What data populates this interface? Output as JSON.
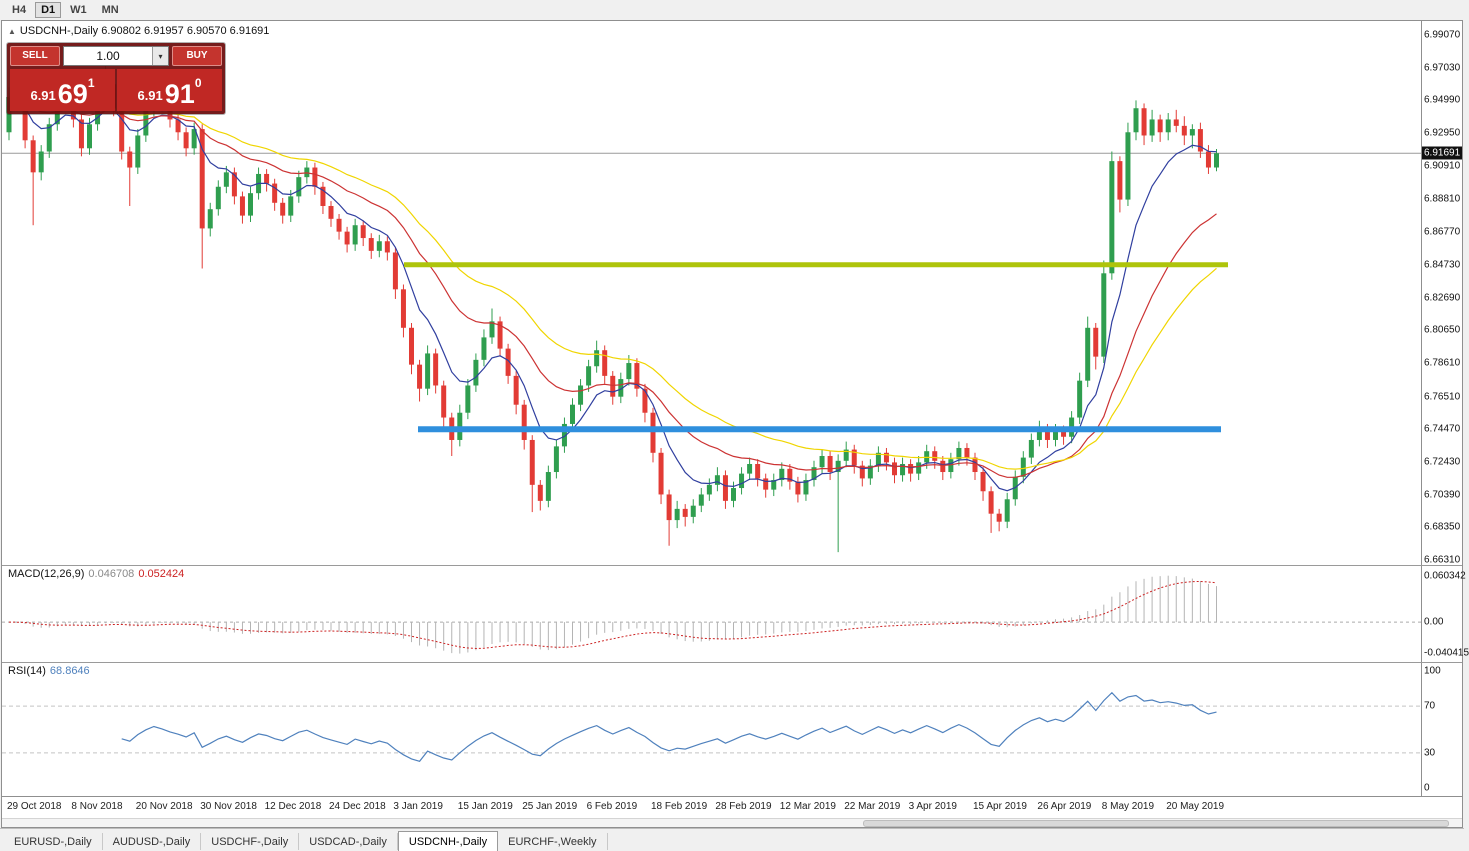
{
  "window": {
    "periods": [
      "H4",
      "D1",
      "W1",
      "MN"
    ],
    "active_period": "D1"
  },
  "chart": {
    "title_line": "USDCNH-,Daily 6.90802 6.91957 6.90570 6.91691"
  },
  "trade_panel": {
    "sell_label": "SELL",
    "buy_label": "BUY",
    "volume": "1.00",
    "sell_price": {
      "prefix": "6.91",
      "big": "69",
      "sup": "1"
    },
    "buy_price": {
      "prefix": "6.91",
      "big": "91",
      "sup": "0"
    }
  },
  "chart_data": {
    "type": "candlestick",
    "symbol": "USDCNH-",
    "timeframe": "Daily",
    "last_bar": {
      "open": "6.90802",
      "high": "6.91957",
      "low": "6.90570",
      "close": "6.91691"
    },
    "current_price": "6.91691",
    "y_range": [
      6.6631,
      6.9907
    ],
    "price_axis_ticks": [
      "6.99070",
      "6.97030",
      "6.94990",
      "6.92950",
      "6.90910",
      "6.88810",
      "6.86770",
      "6.84730",
      "6.82690",
      "6.80650",
      "6.78610",
      "6.76510",
      "6.74470",
      "6.72430",
      "6.70390",
      "6.68350",
      "6.66310"
    ],
    "date_labels": [
      "29 Oct 2018",
      "8 Nov 2018",
      "20 Nov 2018",
      "30 Nov 2018",
      "12 Dec 2018",
      "24 Dec 2018",
      "3 Jan 2019",
      "15 Jan 2019",
      "25 Jan 2019",
      "6 Feb 2019",
      "18 Feb 2019",
      "28 Feb 2019",
      "12 Mar 2019",
      "22 Mar 2019",
      "3 Apr 2019",
      "15 Apr 2019",
      "26 Apr 2019",
      "8 May 2019",
      "20 May 2019"
    ],
    "label_every_n_candles": 8,
    "candles": [
      [
        6.93,
        6.958,
        6.925,
        6.952
      ],
      [
        6.952,
        6.957,
        6.943,
        6.948
      ],
      [
        6.948,
        6.951,
        6.92,
        6.925
      ],
      [
        6.925,
        6.928,
        6.872,
        6.905
      ],
      [
        6.905,
        6.922,
        6.9,
        6.918
      ],
      [
        6.918,
        6.939,
        6.914,
        6.935
      ],
      [
        6.935,
        6.954,
        6.931,
        6.95
      ],
      [
        6.95,
        6.96,
        6.946,
        6.955
      ],
      [
        6.955,
        6.958,
        6.933,
        6.938
      ],
      [
        6.938,
        6.941,
        6.915,
        6.92
      ],
      [
        6.92,
        6.939,
        6.916,
        6.935
      ],
      [
        6.935,
        6.956,
        6.931,
        6.952
      ],
      [
        6.952,
        6.978,
        6.948,
        6.96
      ],
      [
        6.96,
        6.964,
        6.94,
        6.945
      ],
      [
        6.945,
        6.948,
        6.913,
        6.918
      ],
      [
        6.918,
        6.921,
        6.884,
        6.908
      ],
      [
        6.908,
        6.932,
        6.904,
        6.928
      ],
      [
        6.928,
        6.948,
        6.924,
        6.944
      ],
      [
        6.944,
        6.961,
        6.94,
        6.956
      ],
      [
        6.956,
        6.959,
        6.943,
        6.948
      ],
      [
        6.948,
        6.951,
        6.933,
        6.938
      ],
      [
        6.938,
        6.941,
        6.925,
        6.93
      ],
      [
        6.93,
        6.933,
        6.915,
        6.92
      ],
      [
        6.92,
        6.936,
        6.916,
        6.932
      ],
      [
        6.932,
        6.935,
        6.845,
        6.87
      ],
      [
        6.87,
        6.886,
        6.865,
        6.882
      ],
      [
        6.882,
        6.9,
        6.878,
        6.896
      ],
      [
        6.896,
        6.909,
        6.892,
        6.905
      ],
      [
        6.905,
        6.908,
        6.885,
        6.89
      ],
      [
        6.89,
        6.893,
        6.873,
        6.878
      ],
      [
        6.878,
        6.896,
        6.874,
        6.892
      ],
      [
        6.892,
        6.908,
        6.888,
        6.904
      ],
      [
        6.904,
        6.907,
        6.893,
        6.898
      ],
      [
        6.898,
        6.901,
        6.881,
        6.886
      ],
      [
        6.886,
        6.889,
        6.873,
        6.878
      ],
      [
        6.878,
        6.894,
        6.874,
        6.89
      ],
      [
        6.89,
        6.906,
        6.886,
        6.902
      ],
      [
        6.902,
        6.912,
        6.898,
        6.908
      ],
      [
        6.908,
        6.911,
        6.891,
        6.896
      ],
      [
        6.896,
        6.899,
        6.879,
        6.884
      ],
      [
        6.884,
        6.887,
        6.871,
        6.876
      ],
      [
        6.876,
        6.879,
        6.863,
        6.868
      ],
      [
        6.868,
        6.871,
        6.855,
        6.86
      ],
      [
        6.86,
        6.876,
        6.856,
        6.872
      ],
      [
        6.872,
        6.875,
        6.859,
        6.864
      ],
      [
        6.864,
        6.867,
        6.851,
        6.856
      ],
      [
        6.856,
        6.866,
        6.852,
        6.862
      ],
      [
        6.862,
        6.865,
        6.85,
        6.855
      ],
      [
        6.855,
        6.858,
        6.826,
        6.832
      ],
      [
        6.832,
        6.835,
        6.802,
        6.808
      ],
      [
        6.808,
        6.811,
        6.779,
        6.785
      ],
      [
        6.785,
        6.788,
        6.762,
        6.77
      ],
      [
        6.77,
        6.797,
        6.766,
        6.792
      ],
      [
        6.792,
        6.795,
        6.767,
        6.772
      ],
      [
        6.772,
        6.775,
        6.746,
        6.752
      ],
      [
        6.752,
        6.755,
        6.728,
        6.738
      ],
      [
        6.738,
        6.76,
        6.734,
        6.755
      ],
      [
        6.755,
        6.776,
        6.751,
        6.772
      ],
      [
        6.772,
        6.792,
        6.768,
        6.788
      ],
      [
        6.788,
        6.807,
        6.784,
        6.802
      ],
      [
        6.802,
        6.82,
        6.798,
        6.812
      ],
      [
        6.812,
        6.815,
        6.79,
        6.795
      ],
      [
        6.795,
        6.798,
        6.773,
        6.778
      ],
      [
        6.778,
        6.781,
        6.754,
        6.76
      ],
      [
        6.76,
        6.763,
        6.732,
        6.738
      ],
      [
        6.738,
        6.741,
        6.693,
        6.71
      ],
      [
        6.71,
        6.713,
        6.694,
        6.7
      ],
      [
        6.7,
        6.722,
        6.696,
        6.718
      ],
      [
        6.718,
        6.738,
        6.714,
        6.734
      ],
      [
        6.734,
        6.752,
        6.73,
        6.748
      ],
      [
        6.748,
        6.764,
        6.744,
        6.76
      ],
      [
        6.76,
        6.776,
        6.756,
        6.772
      ],
      [
        6.772,
        6.788,
        6.768,
        6.784
      ],
      [
        6.784,
        6.8,
        6.78,
        6.794
      ],
      [
        6.794,
        6.797,
        6.773,
        6.778
      ],
      [
        6.778,
        6.781,
        6.76,
        6.765
      ],
      [
        6.765,
        6.78,
        6.761,
        6.776
      ],
      [
        6.776,
        6.791,
        6.772,
        6.786
      ],
      [
        6.786,
        6.789,
        6.765,
        6.77
      ],
      [
        6.77,
        6.773,
        6.749,
        6.755
      ],
      [
        6.755,
        6.758,
        6.724,
        6.73
      ],
      [
        6.73,
        6.733,
        6.698,
        6.704
      ],
      [
        6.704,
        6.707,
        6.672,
        6.688
      ],
      [
        6.688,
        6.7,
        6.683,
        6.695
      ],
      [
        6.695,
        6.698,
        6.684,
        6.69
      ],
      [
        6.69,
        6.701,
        6.686,
        6.697
      ],
      [
        6.697,
        6.708,
        6.693,
        6.704
      ],
      [
        6.704,
        6.714,
        6.7,
        6.71
      ],
      [
        6.71,
        6.721,
        6.706,
        6.716
      ],
      [
        6.716,
        6.719,
        6.695,
        6.7
      ],
      [
        6.7,
        6.712,
        6.696,
        6.708
      ],
      [
        6.708,
        6.721,
        6.704,
        6.717
      ],
      [
        6.717,
        6.727,
        6.713,
        6.723
      ],
      [
        6.723,
        6.726,
        6.709,
        6.714
      ],
      [
        6.714,
        6.717,
        6.702,
        6.707
      ],
      [
        6.707,
        6.717,
        6.703,
        6.713
      ],
      [
        6.713,
        6.724,
        6.709,
        6.72
      ],
      [
        6.72,
        6.723,
        6.707,
        6.712
      ],
      [
        6.712,
        6.715,
        6.699,
        6.704
      ],
      [
        6.704,
        6.717,
        6.7,
        6.713
      ],
      [
        6.713,
        6.725,
        6.709,
        6.721
      ],
      [
        6.721,
        6.732,
        6.717,
        6.728
      ],
      [
        6.728,
        6.731,
        6.713,
        6.718
      ],
      [
        6.718,
        6.729,
        6.668,
        6.725
      ],
      [
        6.725,
        6.737,
        6.721,
        6.732
      ],
      [
        6.732,
        6.735,
        6.717,
        6.722
      ],
      [
        6.722,
        6.725,
        6.709,
        6.714
      ],
      [
        6.714,
        6.726,
        6.71,
        6.722
      ],
      [
        6.722,
        6.734,
        6.718,
        6.73
      ],
      [
        6.73,
        6.733,
        6.719,
        6.724
      ],
      [
        6.724,
        6.727,
        6.711,
        6.716
      ],
      [
        6.716,
        6.727,
        6.712,
        6.723
      ],
      [
        6.723,
        6.726,
        6.712,
        6.717
      ],
      [
        6.717,
        6.728,
        6.713,
        6.724
      ],
      [
        6.724,
        6.735,
        6.72,
        6.731
      ],
      [
        6.731,
        6.734,
        6.72,
        6.725
      ],
      [
        6.725,
        6.728,
        6.713,
        6.718
      ],
      [
        6.718,
        6.73,
        6.714,
        6.726
      ],
      [
        6.726,
        6.737,
        6.722,
        6.733
      ],
      [
        6.733,
        6.736,
        6.722,
        6.727
      ],
      [
        6.727,
        6.73,
        6.713,
        6.718
      ],
      [
        6.718,
        6.721,
        6.7,
        6.706
      ],
      [
        6.706,
        6.709,
        6.68,
        6.692
      ],
      [
        6.692,
        6.695,
        6.681,
        6.687
      ],
      [
        6.687,
        6.705,
        6.683,
        6.701
      ],
      [
        6.701,
        6.719,
        6.697,
        6.715
      ],
      [
        6.715,
        6.731,
        6.711,
        6.727
      ],
      [
        6.727,
        6.742,
        6.723,
        6.738
      ],
      [
        6.738,
        6.75,
        6.734,
        6.745
      ],
      [
        6.745,
        6.748,
        6.733,
        6.738
      ],
      [
        6.738,
        6.748,
        6.734,
        6.744
      ],
      [
        6.744,
        6.747,
        6.735,
        6.74
      ],
      [
        6.74,
        6.756,
        6.736,
        6.752
      ],
      [
        6.752,
        6.78,
        6.748,
        6.775
      ],
      [
        6.775,
        6.815,
        6.771,
        6.808
      ],
      [
        6.808,
        6.811,
        6.782,
        6.79
      ],
      [
        6.79,
        6.85,
        6.786,
        6.842
      ],
      [
        6.842,
        6.918,
        6.838,
        6.912
      ],
      [
        6.912,
        6.915,
        6.88,
        6.888
      ],
      [
        6.888,
        6.936,
        6.884,
        6.93
      ],
      [
        6.93,
        6.9499,
        6.925,
        6.945
      ],
      [
        6.945,
        6.948,
        6.922,
        6.928
      ],
      [
        6.928,
        6.944,
        6.924,
        6.938
      ],
      [
        6.938,
        6.941,
        6.924,
        6.93
      ],
      [
        6.93,
        6.942,
        6.925,
        6.938
      ],
      [
        6.938,
        6.944,
        6.93,
        6.934
      ],
      [
        6.934,
        6.94,
        6.922,
        6.928
      ],
      [
        6.928,
        6.935,
        6.92,
        6.932
      ],
      [
        6.932,
        6.936,
        6.914,
        6.918
      ],
      [
        6.918,
        6.922,
        6.904,
        6.908
      ],
      [
        6.90802,
        6.91957,
        6.9057,
        6.91691
      ]
    ],
    "moving_averages": [
      {
        "name": "fast-ma",
        "period": 8,
        "color": "#303f9f"
      },
      {
        "name": "mid-ma",
        "period": 21,
        "color": "#cc3333"
      },
      {
        "name": "slow-ma",
        "period": 34,
        "color": "#f0d500"
      }
    ],
    "hlines": [
      {
        "name": "resistance-ray",
        "price": 6.8473,
        "color": "#aec40b",
        "width": 5,
        "x1": 402,
        "x2": 1226
      },
      {
        "name": "support-ray",
        "price": 6.7447,
        "color": "#2f8fdd",
        "width": 6,
        "x1": 416,
        "x2": 1219
      }
    ],
    "colors": {
      "up": "#2f9e4f",
      "down": "#e23b35",
      "price_line": "#9a9a9a",
      "badge_bg": "#111111"
    },
    "macd": {
      "name": "MACD(12,26,9)",
      "value_main": "0.046708",
      "value_signal": "0.052424",
      "fast": 12,
      "slow": 26,
      "signal": 9,
      "axis_max": "0.060342",
      "axis_zero": "0.00",
      "axis_min": "-0.040415",
      "hist_color": "#b4b4b4",
      "signal_color": "#cc2222"
    },
    "rsi": {
      "name": "RSI(14)",
      "value": "68.8646",
      "period": 14,
      "axis": [
        "100",
        "70",
        "30",
        "0"
      ],
      "levels": [
        70,
        30
      ],
      "line_color": "#4f81bd"
    }
  },
  "tabs": [
    {
      "label": "EURUSD-,Daily",
      "active": false
    },
    {
      "label": "AUDUSD-,Daily",
      "active": false
    },
    {
      "label": "USDCHF-,Daily",
      "active": false
    },
    {
      "label": "USDCAD-,Daily",
      "active": false
    },
    {
      "label": "USDCNH-,Daily",
      "active": true
    },
    {
      "label": "EURCHF-,Weekly",
      "active": false
    }
  ]
}
